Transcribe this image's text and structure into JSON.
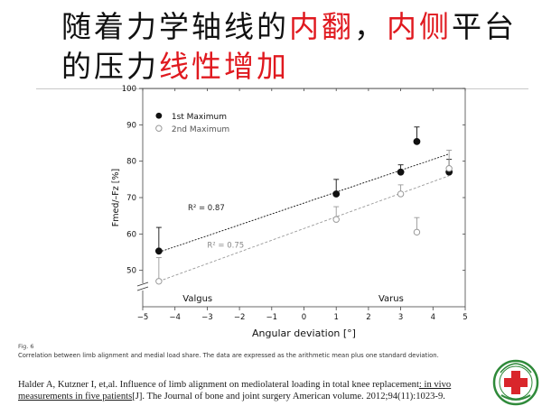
{
  "slide": {
    "title_parts": [
      {
        "text": "随着力学轴线的",
        "highlight": false
      },
      {
        "text": "内翻",
        "highlight": true
      },
      {
        "text": "，",
        "highlight": false
      },
      {
        "text": "内侧",
        "highlight": true
      },
      {
        "text": "平台的压力",
        "highlight": false
      },
      {
        "text": "线性增加",
        "highlight": true
      }
    ],
    "figure_label": "Fig. 6",
    "figure_caption": "Correlation between limb alignment and medial load share. The data are expressed as the arithmetic mean plus one standard deviation.",
    "reference_prefix": "Halder A, Kutzner I, et,al. Influence of limb alignment on mediolateral loading in total knee replacement",
    "reference_linked": ": in vivo measurements in five patients",
    "reference_suffix": "[J]. The Journal of bone and joint surgery American volume. 2012;94(11):1023-9.",
    "colors": {
      "title_text": "#111111",
      "title_highlight": "#e0191f"
    },
    "logo_icon": "hospital-emblem-icon"
  },
  "chart_data": {
    "type": "scatter",
    "xlabel": "Angular deviation [°]",
    "ylabel": "Fmed/–Fz [%]",
    "xlim": [
      -5,
      5
    ],
    "ylim": [
      40,
      100
    ],
    "y_axis_break": true,
    "x_ticks": [
      -5,
      -4,
      -3,
      -2,
      -1,
      0,
      1,
      2,
      3,
      4,
      5
    ],
    "y_ticks": [
      50,
      60,
      70,
      80,
      90,
      100
    ],
    "region_labels": [
      {
        "text": "Valgus",
        "x": -3.3
      },
      {
        "text": "Varus",
        "x": 2.7
      }
    ],
    "legend_position": "top-left",
    "series": [
      {
        "name": "1st Maximum",
        "marker": "filled-circle",
        "color": "#111111",
        "points": [
          {
            "x": -4.5,
            "y": 55.3,
            "sd": 6.5
          },
          {
            "x": 1.0,
            "y": 71.0,
            "sd": 4.0
          },
          {
            "x": 3.0,
            "y": 77.0,
            "sd": 2.0
          },
          {
            "x": 3.5,
            "y": 85.4,
            "sd": 4.0
          },
          {
            "x": 4.5,
            "y": 77.0,
            "sd": 3.5
          }
        ],
        "fit": {
          "x": [
            -4.5,
            4.5
          ],
          "y": [
            55.0,
            82.0
          ]
        },
        "r2_label": "R² = 0.87",
        "r2_position": {
          "x": -3.6,
          "y": 66.5
        }
      },
      {
        "name": "2nd Maximum",
        "marker": "open-circle",
        "color": "#999999",
        "points": [
          {
            "x": -4.5,
            "y": 47.0,
            "sd": 6.5
          },
          {
            "x": 1.0,
            "y": 64.0,
            "sd": 3.5
          },
          {
            "x": 3.0,
            "y": 71.0,
            "sd": 2.5
          },
          {
            "x": 3.5,
            "y": 60.5,
            "sd": 4.0
          },
          {
            "x": 4.5,
            "y": 78.0,
            "sd": 5.0
          }
        ],
        "fit": {
          "x": [
            -4.5,
            4.5
          ],
          "y": [
            47.0,
            76.0
          ]
        },
        "r2_label": "R² = 0.75",
        "r2_position": {
          "x": -3.0,
          "y": 56.3
        }
      }
    ]
  }
}
